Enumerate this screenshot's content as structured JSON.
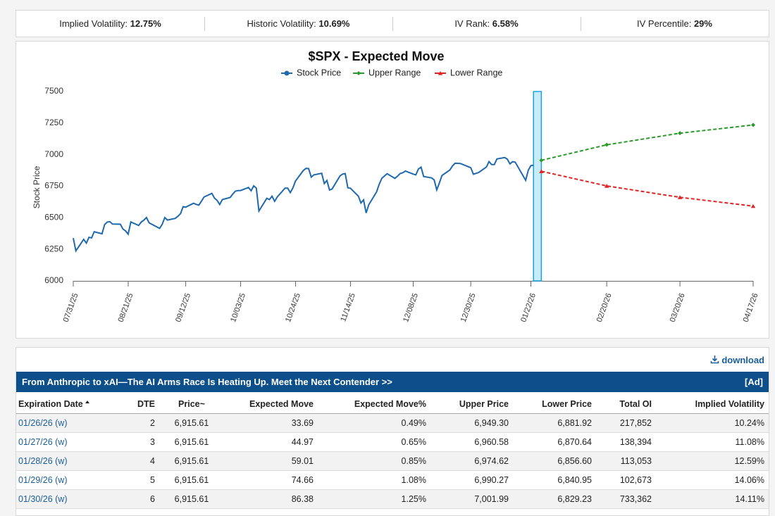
{
  "stats": [
    {
      "label": "Implied Volatility:",
      "value": "12.75%"
    },
    {
      "label": "Historic Volatility:",
      "value": "10.69%"
    },
    {
      "label": "IV Rank:",
      "value": "6.58%"
    },
    {
      "label": "IV Percentile:",
      "value": "29%"
    }
  ],
  "chart_data": {
    "type": "line",
    "title": "$SPX - Expected Move",
    "y_label": "Stock Price",
    "ylim": [
      6000,
      7500
    ],
    "yticks": [
      6000,
      6250,
      6500,
      6750,
      7000,
      7250,
      7500
    ],
    "xlim": [
      "07/31/25",
      "04/17/26"
    ],
    "xticks": [
      "07/31/25",
      "08/21/25",
      "09/12/25",
      "10/03/25",
      "10/24/25",
      "11/14/25",
      "12/08/25",
      "12/30/25",
      "01/22/26",
      "02/20/26",
      "03/20/26",
      "04/17/26"
    ],
    "grid": false,
    "legend": "top",
    "highlight_range": [
      "01/23/26",
      "01/26/26"
    ],
    "series": [
      {
        "name": "Stock Price",
        "color": "#1f69ad",
        "marker": "circle",
        "show_markers": false,
        "dashed": false,
        "x": [
          "07/31/25",
          "08/01/25",
          "08/04/25",
          "08/05/25",
          "08/06/25",
          "08/07/25",
          "08/08/25",
          "08/11/25",
          "08/12/25",
          "08/13/25",
          "08/14/25",
          "08/15/25",
          "08/18/25",
          "08/19/25",
          "08/20/25",
          "08/21/25",
          "08/22/25",
          "08/25/25",
          "08/26/25",
          "08/27/25",
          "08/28/25",
          "08/29/25",
          "09/02/25",
          "09/03/25",
          "09/04/25",
          "09/05/25",
          "09/08/25",
          "09/09/25",
          "09/10/25",
          "09/11/25",
          "09/12/25",
          "09/15/25",
          "09/16/25",
          "09/17/25",
          "09/18/25",
          "09/19/25",
          "09/22/25",
          "09/23/25",
          "09/24/25",
          "09/25/25",
          "09/26/25",
          "09/29/25",
          "09/30/25",
          "10/01/25",
          "10/02/25",
          "10/03/25",
          "10/06/25",
          "10/07/25",
          "10/08/25",
          "10/09/25",
          "10/10/25",
          "10/13/25",
          "10/14/25",
          "10/15/25",
          "10/16/25",
          "10/17/25",
          "10/20/25",
          "10/21/25",
          "10/22/25",
          "10/23/25",
          "10/24/25",
          "10/27/25",
          "10/28/25",
          "10/29/25",
          "10/30/25",
          "10/31/25",
          "11/03/25",
          "11/04/25",
          "11/05/25",
          "11/06/25",
          "11/07/25",
          "11/10/25",
          "11/11/25",
          "11/12/25",
          "11/13/25",
          "11/14/25",
          "11/17/25",
          "11/18/25",
          "11/19/25",
          "11/20/25",
          "11/21/25",
          "11/24/25",
          "11/25/25",
          "11/26/25",
          "11/28/25",
          "12/01/25",
          "12/02/25",
          "12/03/25",
          "12/04/25",
          "12/05/25",
          "12/08/25",
          "12/09/25",
          "12/10/25",
          "12/11/25",
          "12/12/25",
          "12/15/25",
          "12/16/25",
          "12/17/25",
          "12/18/25",
          "12/19/25",
          "12/22/25",
          "12/23/25",
          "12/24/25",
          "12/26/25",
          "12/29/25",
          "12/30/25",
          "12/31/25",
          "01/02/26",
          "01/05/26",
          "01/06/26",
          "01/07/26",
          "01/08/26",
          "01/09/26",
          "01/12/26",
          "01/13/26",
          "01/14/26",
          "01/15/26",
          "01/16/26",
          "01/20/26",
          "01/21/26",
          "01/22/26",
          "01/23/26"
        ],
        "values": [
          6339,
          6238,
          6329,
          6299,
          6345,
          6340,
          6389,
          6373,
          6446,
          6466,
          6469,
          6450,
          6449,
          6411,
          6396,
          6370,
          6467,
          6439,
          6466,
          6481,
          6502,
          6460,
          6416,
          6448,
          6502,
          6482,
          6495,
          6512,
          6532,
          6588,
          6584,
          6615,
          6606,
          6600,
          6631,
          6664,
          6693,
          6656,
          6638,
          6605,
          6644,
          6661,
          6688,
          6711,
          6715,
          6716,
          6740,
          6714,
          6753,
          6735,
          6553,
          6654,
          6644,
          6671,
          6630,
          6664,
          6735,
          6735,
          6699,
          6738,
          6792,
          6875,
          6891,
          6890,
          6822,
          6840,
          6852,
          6771,
          6796,
          6720,
          6728,
          6832,
          6846,
          6850,
          6737,
          6734,
          6672,
          6617,
          6642,
          6538,
          6603,
          6705,
          6766,
          6813,
          6849,
          6812,
          6829,
          6850,
          6857,
          6870,
          6846,
          6840,
          6886,
          6901,
          6827,
          6816,
          6800,
          6721,
          6775,
          6835,
          6878,
          6910,
          6932,
          6930,
          6905,
          6896,
          6845,
          6858,
          6902,
          6945,
          6921,
          6921,
          6966,
          6977,
          6964,
          6927,
          6944,
          6940,
          6797,
          6876,
          6913,
          6916
        ]
      },
      {
        "name": "Upper Range",
        "color": "#2a9a2a",
        "marker": "diamond",
        "show_markers": true,
        "dashed": true,
        "x": [
          "01/26/26",
          "02/20/26",
          "03/20/26",
          "04/17/26"
        ],
        "values": [
          6955,
          7078,
          7170,
          7235
        ]
      },
      {
        "name": "Lower Range",
        "color": "#e02424",
        "marker": "triangle",
        "show_markers": true,
        "dashed": true,
        "x": [
          "01/26/26",
          "02/20/26",
          "03/20/26",
          "04/17/26"
        ],
        "values": [
          6868,
          6752,
          6662,
          6592
        ]
      }
    ]
  },
  "download": "download",
  "ad": {
    "text": "From Anthropic to xAI—The AI Arms Race Is Heating Up. Meet the Next Contender >>",
    "tag": "[Ad]"
  },
  "table": {
    "columns": [
      "Expiration Date",
      "DTE",
      "Price~",
      "Expected Move",
      "Expected Move%",
      "Upper Price",
      "Lower Price",
      "Total OI",
      "Implied Volatility"
    ],
    "rows": [
      [
        "01/26/26 (w)",
        "2",
        "6,915.61",
        "33.69",
        "0.49%",
        "6,949.30",
        "6,881.92",
        "217,852",
        "10.24%"
      ],
      [
        "01/27/26 (w)",
        "3",
        "6,915.61",
        "44.97",
        "0.65%",
        "6,960.58",
        "6,870.64",
        "138,394",
        "11.08%"
      ],
      [
        "01/28/26 (w)",
        "4",
        "6,915.61",
        "59.01",
        "0.85%",
        "6,974.62",
        "6,856.60",
        "113,053",
        "12.59%"
      ],
      [
        "01/29/26 (w)",
        "5",
        "6,915.61",
        "74.66",
        "1.08%",
        "6,990.27",
        "6,840.95",
        "102,673",
        "14.06%"
      ],
      [
        "01/30/26 (w)",
        "6",
        "6,915.61",
        "86.38",
        "1.25%",
        "7,001.99",
        "6,829.23",
        "733,362",
        "14.11%"
      ]
    ]
  }
}
